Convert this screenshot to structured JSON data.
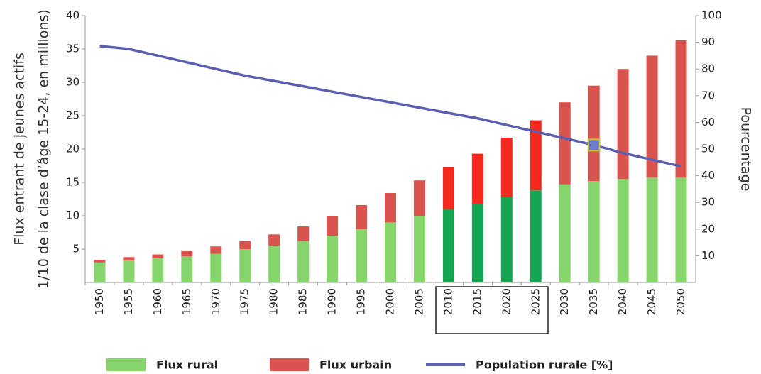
{
  "chart_data": {
    "type": "bar",
    "stacked": true,
    "ylabel": [
      "Flux entrant de jeunes actifs",
      "1/10 de la clase d’âge 15-24, en millions)"
    ],
    "y2label": "Pourcentage",
    "categories": [
      "1950",
      "1955",
      "1960",
      "1965",
      "1970",
      "1975",
      "1980",
      "1985",
      "1990",
      "1995",
      "2000",
      "2005",
      "2010",
      "2015",
      "2020",
      "2025",
      "2030",
      "2035",
      "2040",
      "2045",
      "2050"
    ],
    "series": [
      {
        "name": "Flux rural",
        "color": "#86d46c",
        "colors": [
          "#86d46c",
          "#86d46c",
          "#86d46c",
          "#86d46c",
          "#86d46c",
          "#86d46c",
          "#86d46c",
          "#86d46c",
          "#86d46c",
          "#86d46c",
          "#86d46c",
          "#86d46c",
          "#14a653",
          "#14a653",
          "#14a653",
          "#14a653",
          "#86d46c",
          "#86d46c",
          "#86d46c",
          "#86d46c",
          "#86d46c"
        ],
        "values": [
          3.0,
          3.3,
          3.6,
          3.9,
          4.3,
          5.0,
          5.5,
          6.2,
          7.0,
          8.0,
          9.0,
          10.0,
          11.0,
          11.8,
          12.8,
          13.8,
          14.7,
          15.2,
          15.5,
          15.7,
          15.7
        ]
      },
      {
        "name": "Flux urbain",
        "color": "#d9534f",
        "colors": [
          "#d9534f",
          "#d9534f",
          "#d9534f",
          "#d9534f",
          "#d9534f",
          "#d9534f",
          "#d9534f",
          "#d9534f",
          "#d9534f",
          "#d9534f",
          "#d9534f",
          "#d9534f",
          "#f52a1f",
          "#f52a1f",
          "#f52a1f",
          "#f52a1f",
          "#d9534f",
          "#d9534f",
          "#d9534f",
          "#d9534f",
          "#d9534f"
        ],
        "values": [
          0.4,
          0.5,
          0.6,
          0.9,
          1.1,
          1.2,
          1.7,
          2.2,
          3.0,
          3.6,
          4.4,
          5.3,
          6.3,
          7.5,
          8.9,
          10.5,
          12.3,
          14.3,
          16.5,
          18.3,
          20.6
        ]
      },
      {
        "name": "Population rurale [%]",
        "color": "#5b5fb0",
        "type": "line",
        "axis": "y2",
        "values": [
          88.6,
          87.5,
          85,
          82.5,
          80,
          77.5,
          75.5,
          73.5,
          71.5,
          69.5,
          67.5,
          65.5,
          63.5,
          61.5,
          59,
          56.5,
          54,
          51.5,
          48.5,
          46,
          43.5
        ]
      }
    ],
    "ylim": [
      0,
      40
    ],
    "yticks": [
      5,
      10,
      15,
      20,
      25,
      30,
      35,
      40
    ],
    "y2lim": [
      0,
      100
    ],
    "y2ticks": [
      10,
      20,
      30,
      40,
      50,
      60,
      70,
      80,
      90,
      100
    ],
    "legend": "bottom"
  }
}
